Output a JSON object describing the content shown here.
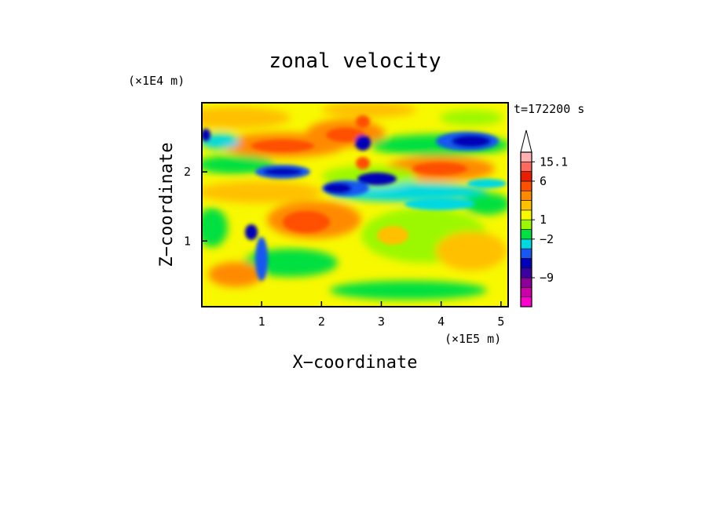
{
  "chart_data": {
    "type": "heatmap",
    "title": "zonal velocity",
    "xlabel": "X−coordinate",
    "ylabel": "Z−coordinate",
    "x_units": "(×1E5 m)",
    "y_units": "(×1E4 m)",
    "time_label": "t=172200 s",
    "xlim": [
      0,
      5.12
    ],
    "ylim": [
      0.05,
      3.0
    ],
    "x_ticks": [
      "1",
      "2",
      "3",
      "4",
      "5"
    ],
    "y_ticks": [
      "1",
      "2"
    ],
    "colorbar": {
      "labels": [
        "15.1",
        "6",
        "1",
        "−2",
        "−9"
      ],
      "colors": [
        "#ff00cc",
        "#cc00a8",
        "#8a0099",
        "#3a00a0",
        "#0000b8",
        "#1858f0",
        "#00d8e0",
        "#00e040",
        "#9cf800",
        "#f8f800",
        "#ffc000",
        "#ff8a00",
        "#ff5000",
        "#e82000",
        "#ff6a60",
        "#ffb0b0"
      ],
      "extend": "max",
      "extend_color": "#ffffff"
    },
    "grid": false,
    "legend": "colorbar right"
  }
}
